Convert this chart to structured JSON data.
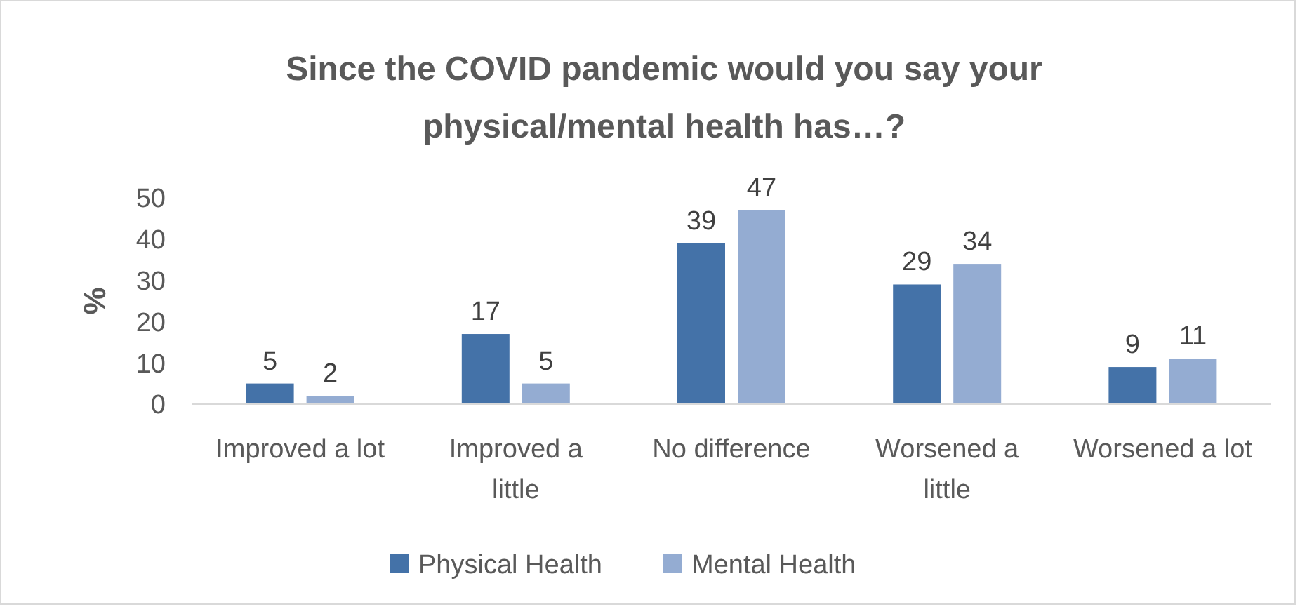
{
  "chart_data": {
    "type": "bar",
    "title": "Since the COVID pandemic would you say your physical/mental health has…?",
    "ylabel": "%",
    "categories": [
      "Improved a lot",
      "Improved a little",
      "No difference",
      "Worsened a little",
      "Worsened a lot"
    ],
    "series": [
      {
        "name": "Physical Health",
        "color": "#4472a8",
        "values": [
          5,
          17,
          39,
          29,
          9
        ]
      },
      {
        "name": "Mental Health",
        "color": "#94acd2",
        "values": [
          2,
          5,
          47,
          34,
          11
        ]
      }
    ],
    "ylim": [
      0,
      50
    ],
    "yticks": [
      0,
      10,
      20,
      30,
      40,
      50
    ],
    "data_labels": true,
    "legend": "bottom",
    "grid": false
  }
}
